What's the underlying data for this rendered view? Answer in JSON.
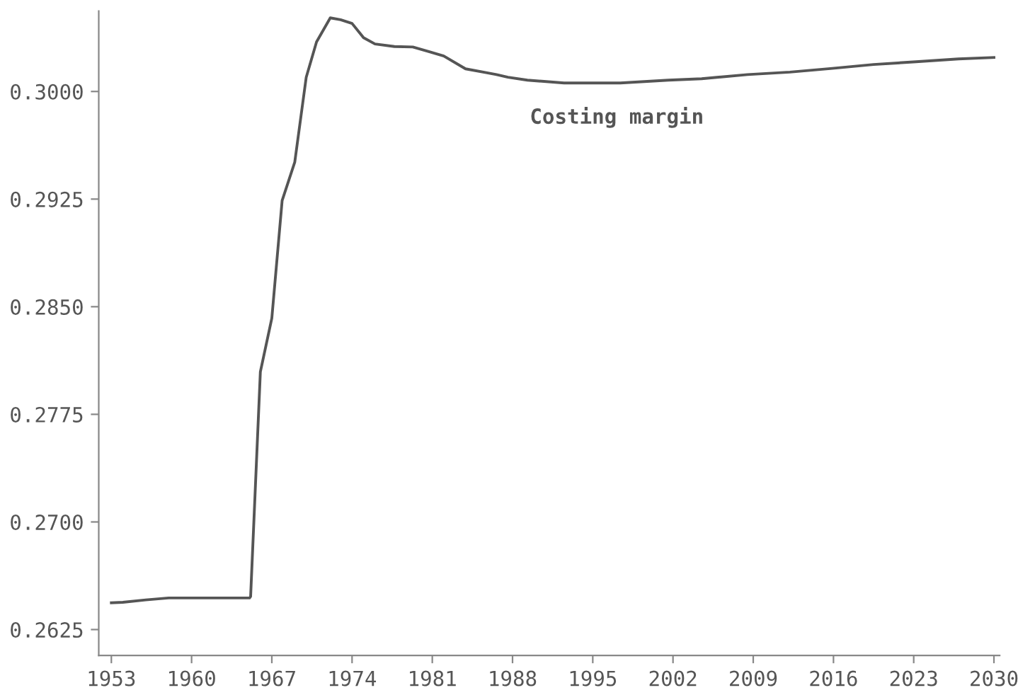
{
  "chart_data": {
    "type": "line",
    "x": [
      1953,
      1954,
      1956,
      1958,
      1965.05,
      1965.15,
      1966.0,
      1967.0,
      1967.9,
      1969.0,
      1970.0,
      1970.9,
      1972.1,
      1973.0,
      1974.0,
      1975.0,
      1976.0,
      1977.7,
      1979.3,
      1980.8,
      1982.0,
      1983.9,
      1985.7,
      1986.6,
      1987.6,
      1989.3,
      1992.5,
      1997.4,
      2001.6,
      2004.5,
      2008.5,
      2012.2,
      2015.9,
      2019.5,
      2023.2,
      2026.9,
      2030
    ],
    "series": [
      {
        "color": "#555555",
        "values": [
          0.26437,
          0.2644,
          0.26457,
          0.2647,
          0.2647,
          0.2648,
          0.28046,
          0.2842,
          0.2924,
          0.29507,
          0.30099,
          0.30345,
          0.30513,
          0.305,
          0.30474,
          0.30375,
          0.30331,
          0.30313,
          0.3031,
          0.30276,
          0.30247,
          0.30158,
          0.30131,
          0.30118,
          0.30099,
          0.30079,
          0.30059,
          0.30059,
          0.30079,
          0.30089,
          0.30118,
          0.30135,
          0.30161,
          0.30188,
          0.30207,
          0.30227,
          0.30237
        ]
      }
    ],
    "annotations": [
      "Costing margin"
    ],
    "xlim": [
      1951.9,
      2030.5
    ],
    "ylim": [
      0.2607,
      0.3056
    ],
    "xticks": [
      1953,
      1960,
      1967,
      1974,
      1981,
      1988,
      1995,
      2002,
      2009,
      2016,
      2023,
      2030
    ],
    "yticks": [
      {
        "value": 0.2625,
        "label": "0.2625"
      },
      {
        "value": 0.27,
        "label": "0.2700"
      },
      {
        "value": 0.2775,
        "label": "0.2775"
      },
      {
        "value": 0.285,
        "label": "0.2850"
      },
      {
        "value": 0.2925,
        "label": "0.2925"
      },
      {
        "value": 0.3,
        "label": "0.3000"
      }
    ],
    "grid": false,
    "legend": false
  }
}
